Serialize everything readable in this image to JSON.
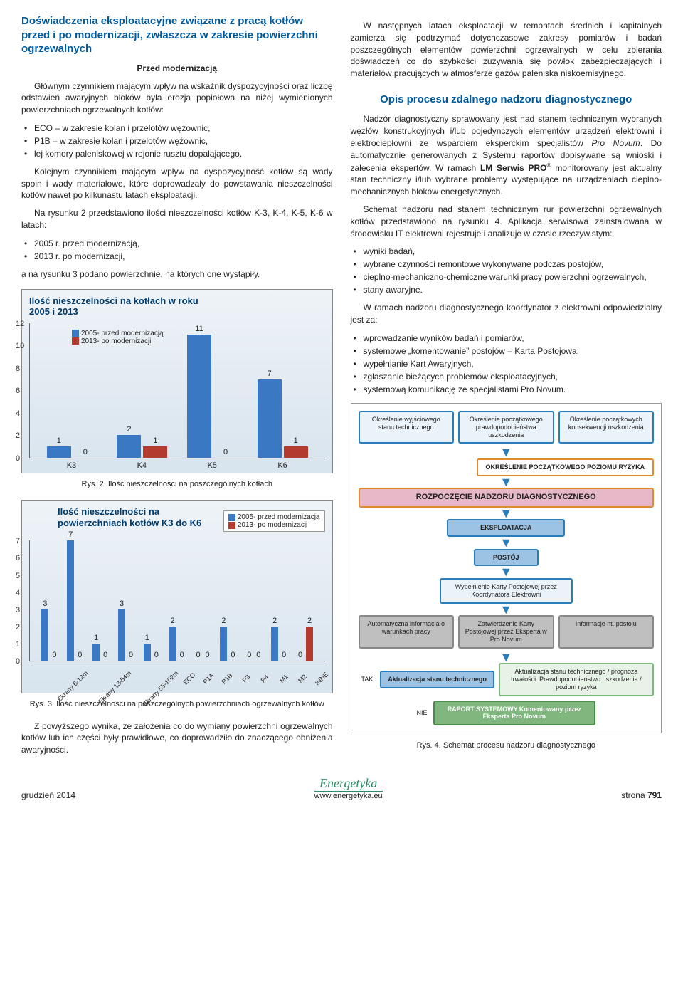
{
  "left": {
    "heading": "Doświadczenia eksploatacyjne związane z pracą kotłów przed i po modernizacji, zwłaszcza w zakresie powierzchni ogrzewalnych",
    "subheading": "Przed modernizacją",
    "p1": "Głównym czynnikiem mającym wpływ na wskaźnik dyspozycyjności oraz liczbę odstawień awaryjnych bloków była erozja popiołowa na niżej wymienionych powierzchniach ogrzewalnych kotłów:",
    "list1": [
      "ECO – w zakresie kolan i przelotów wężownic,",
      "P1B – w zakresie kolan i przelotów wężownic,",
      "lej komory paleniskowej w rejonie rusztu dopalającego."
    ],
    "p2": "Kolejnym czynnikiem mającym wpływ na dyspozycyjność kotłów są wady spoin i wady materiałowe, które doprowadzały do powstawania nieszczelności kotłów nawet po kilkunastu latach eksploatacji.",
    "p3": "Na rysunku 2 przedstawiono ilości nieszczelności kotłów K-3, K-4, K-5, K-6 w latach:",
    "list2": [
      "2005 r. przed modernizacją,",
      "2013 r. po modernizacji,"
    ],
    "p3b": "a na rysunku 3 podano powierzchnie, na których one wystąpiły.",
    "chart1": {
      "title": "Ilość nieszczelności na kotłach w roku 2005 i 2013",
      "legend_a": "2005- przed modernizacją",
      "legend_b": "2013- po modernizacji",
      "color_a": "#3b78c4",
      "color_b": "#b23a2f",
      "ylim": 12,
      "yticks": [
        0,
        2,
        4,
        6,
        8,
        10,
        12
      ],
      "categories": [
        "K3",
        "K4",
        "K5",
        "K6"
      ],
      "series_a": [
        1,
        2,
        11,
        7
      ],
      "series_b": [
        0,
        1,
        0,
        1
      ]
    },
    "caption1": "Rys. 2. Ilość nieszczelności na poszczególnych kotłach",
    "chart2": {
      "title": "Ilość nieszczelności na powierzchniach kotłów K3 do K6",
      "legend_a": "2005- przed modernizacją",
      "legend_b": "2013- po modernizacji",
      "color_a": "#3b78c4",
      "color_b": "#b23a2f",
      "ylim": 7,
      "yticks": [
        0,
        1,
        2,
        3,
        4,
        5,
        6,
        7
      ],
      "categories": [
        "Ekrany 6-12m",
        "Ekrany 13-54m",
        "Ekrany 55-102m",
        "ECO",
        "P1A",
        "P1B",
        "P3",
        "P4",
        "M1",
        "M2",
        "INNE"
      ],
      "series_a": [
        3,
        7,
        1,
        3,
        1,
        2,
        0,
        2,
        0,
        2,
        0
      ],
      "series_b": [
        0,
        0,
        0,
        0,
        0,
        0,
        0,
        0,
        0,
        0,
        2
      ]
    },
    "caption2": "Rys. 3. Ilość nieszczelności na poszczególnych powierzchniach ogrzewalnych kotłów",
    "p_bottom": "Z powyższego wynika, że założenia co do wymiany powierzchni ogrzewalnych kotłów lub ich części były prawidłowe, co doprowadziło do znaczącego obniżenia awaryjności."
  },
  "right": {
    "p1": "W następnych latach eksploatacji w remontach średnich i kapitalnych zamierza się podtrzymać dotychczasowe zakresy pomiarów i badań poszczególnych elementów powierzchni ogrzewalnych w celu zbierania doświadczeń co do szybkości zużywania się powłok zabezpieczających i materiałów pracujących w atmosferze gazów paleniska niskoemisyjnego.",
    "heading": "Opis procesu zdalnego nadzoru diagnostycznego",
    "p2a": "Nadzór diagnostyczny sprawowany jest nad stanem technicznym wybranych węzłów konstrukcyjnych i/lub pojedynczych elementów urządzeń elektrowni i elektrociepłowni ze wsparciem eksperckim specjalistów ",
    "p2b": "Pro Novum",
    "p2c": ". Do automatycznie generowanych z Systemu raportów dopisywane są wnioski i zalecenia ekspertów. W ramach ",
    "p2d": "LM Serwis PRO",
    "p2e": " monitorowany jest aktualny stan techniczny i/lub wybrane problemy występujące na urządzeniach cieplno-mechanicznych bloków energetycznych.",
    "p3": "Schemat nadzoru nad stanem technicznym rur powierzchni ogrzewalnych kotłów przedstawiono na rysunku 4. Aplikacja serwisowa zainstalowana w środowisku IT elektrowni rejestruje i analizuje w czasie rzeczywistym:",
    "list1": [
      "wyniki badań,",
      "wybrane czynności remontowe wykonywane podczas postojów,",
      "cieplno-mechaniczno-chemiczne warunki pracy powierzchni ogrzewalnych,",
      "stany awaryjne."
    ],
    "p4": "W ramach nadzoru diagnostycznego koordynator z elektrowni odpowiedzialny jest za:",
    "list2": [
      "wprowadzanie wyników badań i pomiarów,",
      "systemowe „komentowanie” postojów – Karta Postojowa,",
      "wypełnianie Kart Awaryjnych,",
      "zgłaszanie bieżących problemów eksploatacyjnych,",
      "systemową komunikację ze specjalistami Pro Novum."
    ],
    "flow": {
      "row1": [
        "Określenie wyjściowego stanu technicznego",
        "Określenie początkowego prawdopodobieństwa uszkodzenia",
        "Określenie początkowych konsekwencji uszkodzenia"
      ],
      "risk": "OKREŚLENIE POCZĄTKOWEGO POZIOMU RYZYKA",
      "start": "ROZPOCZĘCIE NADZORU DIAGNOSTYCZNEGO",
      "ekspl": "EKSPLOATACJA",
      "postoj": "POSTÓJ",
      "karta": "Wypełnienie Karty Postojowej przez Koordynatora Elektrowni",
      "row_bottom": [
        "Automatyczna informacja o warunkach pracy",
        "Zatwierdzenie Karty Postojowej przez Eksperta w Pro Novum",
        "Informacje nt. postoju"
      ],
      "tak": "TAK",
      "nie": "NIE",
      "aktual": "Aktualizacja stanu technicznego",
      "aktual2": "Aktualizacja stanu technicznego / prognoza trwałości. Prawdopodobieństwo uszkodzenia / poziom ryzyka",
      "raport": "RAPORT SYSTEMOWY Komentowany przez Eksperta Pro Novum",
      "colors": {
        "blue": "#2a7dbb",
        "orange": "#e08a2c",
        "pink": "#e6b8c8",
        "green": "#7fb77e",
        "gray": "#bfbfbf",
        "lblue": "#9cc3e4",
        "dgreen": "#4c8c4a"
      }
    },
    "caption": "Rys. 4. Schemat procesu nadzoru diagnostycznego"
  },
  "footer": {
    "left": "grudzień 2014",
    "brand": "Energetyka",
    "url": "www.energetyka.eu",
    "right_a": "strona ",
    "right_b": "791"
  }
}
